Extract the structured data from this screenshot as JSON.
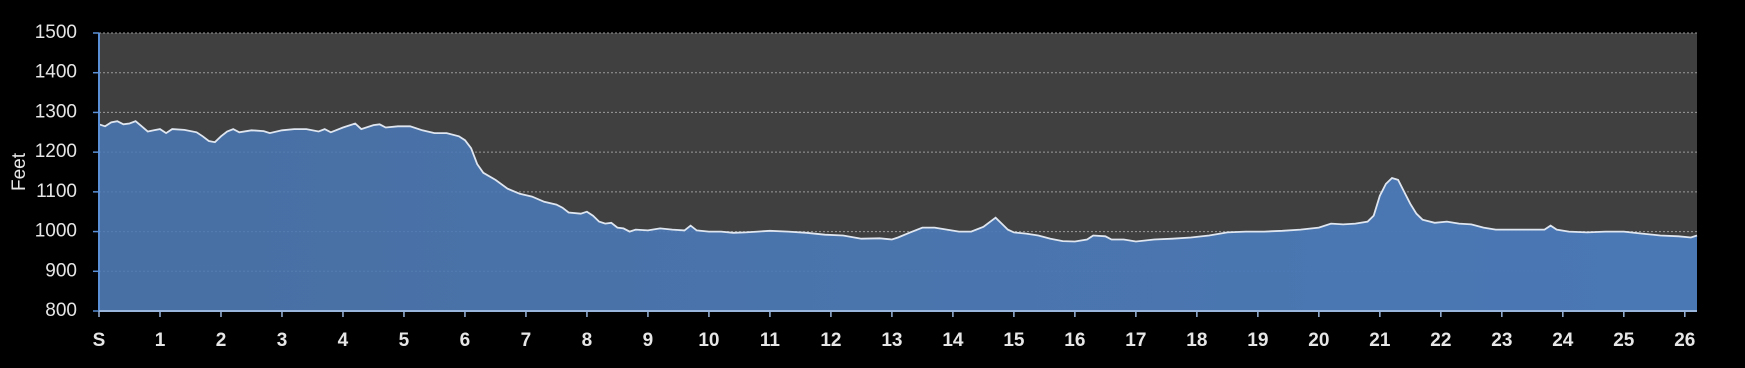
{
  "chart_data": {
    "type": "area",
    "y_label": "Feet",
    "color": "#4a78b5",
    "line_color": "#dfe6f0",
    "plot_background": "#404040",
    "grid": true,
    "xlim": [
      0,
      26.2
    ],
    "ylim": [
      800,
      1500
    ],
    "xticks": [
      {
        "value": 0,
        "label": "S"
      },
      1,
      2,
      3,
      4,
      5,
      6,
      7,
      8,
      9,
      10,
      11,
      12,
      13,
      14,
      15,
      16,
      17,
      18,
      19,
      20,
      21,
      22,
      23,
      24,
      25,
      26
    ],
    "yticks": [
      800,
      900,
      1000,
      1100,
      1200,
      1300,
      1400,
      1500
    ],
    "x": [
      0,
      0.1,
      0.2,
      0.3,
      0.4,
      0.5,
      0.6,
      0.7,
      0.8,
      0.9,
      1.0,
      1.1,
      1.2,
      1.4,
      1.6,
      1.7,
      1.8,
      1.9,
      2.0,
      2.1,
      2.2,
      2.3,
      2.5,
      2.7,
      2.8,
      3.0,
      3.2,
      3.4,
      3.6,
      3.7,
      3.8,
      4.0,
      4.2,
      4.3,
      4.5,
      4.6,
      4.7,
      4.9,
      5.1,
      5.3,
      5.5,
      5.7,
      5.9,
      6.0,
      6.1,
      6.2,
      6.3,
      6.5,
      6.7,
      6.9,
      7.1,
      7.3,
      7.5,
      7.6,
      7.7,
      7.9,
      8.0,
      8.1,
      8.2,
      8.3,
      8.4,
      8.5,
      8.6,
      8.7,
      8.8,
      9.0,
      9.2,
      9.4,
      9.6,
      9.7,
      9.8,
      10.0,
      10.2,
      10.4,
      10.6,
      10.8,
      11.0,
      11.3,
      11.6,
      11.9,
      12.2,
      12.5,
      12.8,
      13.0,
      13.1,
      13.3,
      13.5,
      13.7,
      13.9,
      14.1,
      14.3,
      14.5,
      14.7,
      14.8,
      14.9,
      15.0,
      15.2,
      15.4,
      15.6,
      15.8,
      16.0,
      16.2,
      16.3,
      16.5,
      16.6,
      16.8,
      17.0,
      17.3,
      17.6,
      17.9,
      18.2,
      18.5,
      18.8,
      19.1,
      19.4,
      19.7,
      20.0,
      20.2,
      20.4,
      20.6,
      20.8,
      20.9,
      21.0,
      21.1,
      21.2,
      21.3,
      21.4,
      21.5,
      21.6,
      21.7,
      21.9,
      22.1,
      22.3,
      22.5,
      22.7,
      22.9,
      23.1,
      23.4,
      23.7,
      23.8,
      23.9,
      24.1,
      24.4,
      24.7,
      25.0,
      25.3,
      25.6,
      25.9,
      26.1,
      26.2
    ],
    "values": [
      1270,
      1265,
      1275,
      1278,
      1270,
      1272,
      1278,
      1265,
      1252,
      1255,
      1258,
      1248,
      1258,
      1256,
      1250,
      1240,
      1228,
      1225,
      1240,
      1252,
      1258,
      1250,
      1255,
      1253,
      1248,
      1255,
      1258,
      1258,
      1252,
      1258,
      1250,
      1262,
      1272,
      1258,
      1268,
      1270,
      1262,
      1265,
      1265,
      1255,
      1248,
      1248,
      1240,
      1230,
      1210,
      1170,
      1148,
      1130,
      1108,
      1095,
      1088,
      1075,
      1068,
      1060,
      1048,
      1045,
      1050,
      1040,
      1025,
      1020,
      1022,
      1010,
      1008,
      1000,
      1005,
      1003,
      1008,
      1005,
      1003,
      1015,
      1003,
      1000,
      1000,
      997,
      998,
      1000,
      1002,
      1000,
      997,
      992,
      990,
      982,
      983,
      980,
      985,
      998,
      1010,
      1010,
      1005,
      1000,
      1000,
      1012,
      1035,
      1020,
      1005,
      998,
      995,
      990,
      982,
      976,
      975,
      980,
      990,
      988,
      980,
      980,
      975,
      980,
      982,
      985,
      990,
      998,
      1000,
      1000,
      1002,
      1005,
      1010,
      1020,
      1018,
      1020,
      1025,
      1040,
      1090,
      1120,
      1135,
      1130,
      1100,
      1070,
      1045,
      1030,
      1022,
      1025,
      1020,
      1018,
      1010,
      1005,
      1005,
      1005,
      1005,
      1015,
      1005,
      1000,
      998,
      1000,
      1000,
      995,
      990,
      988,
      985,
      990
    ]
  }
}
